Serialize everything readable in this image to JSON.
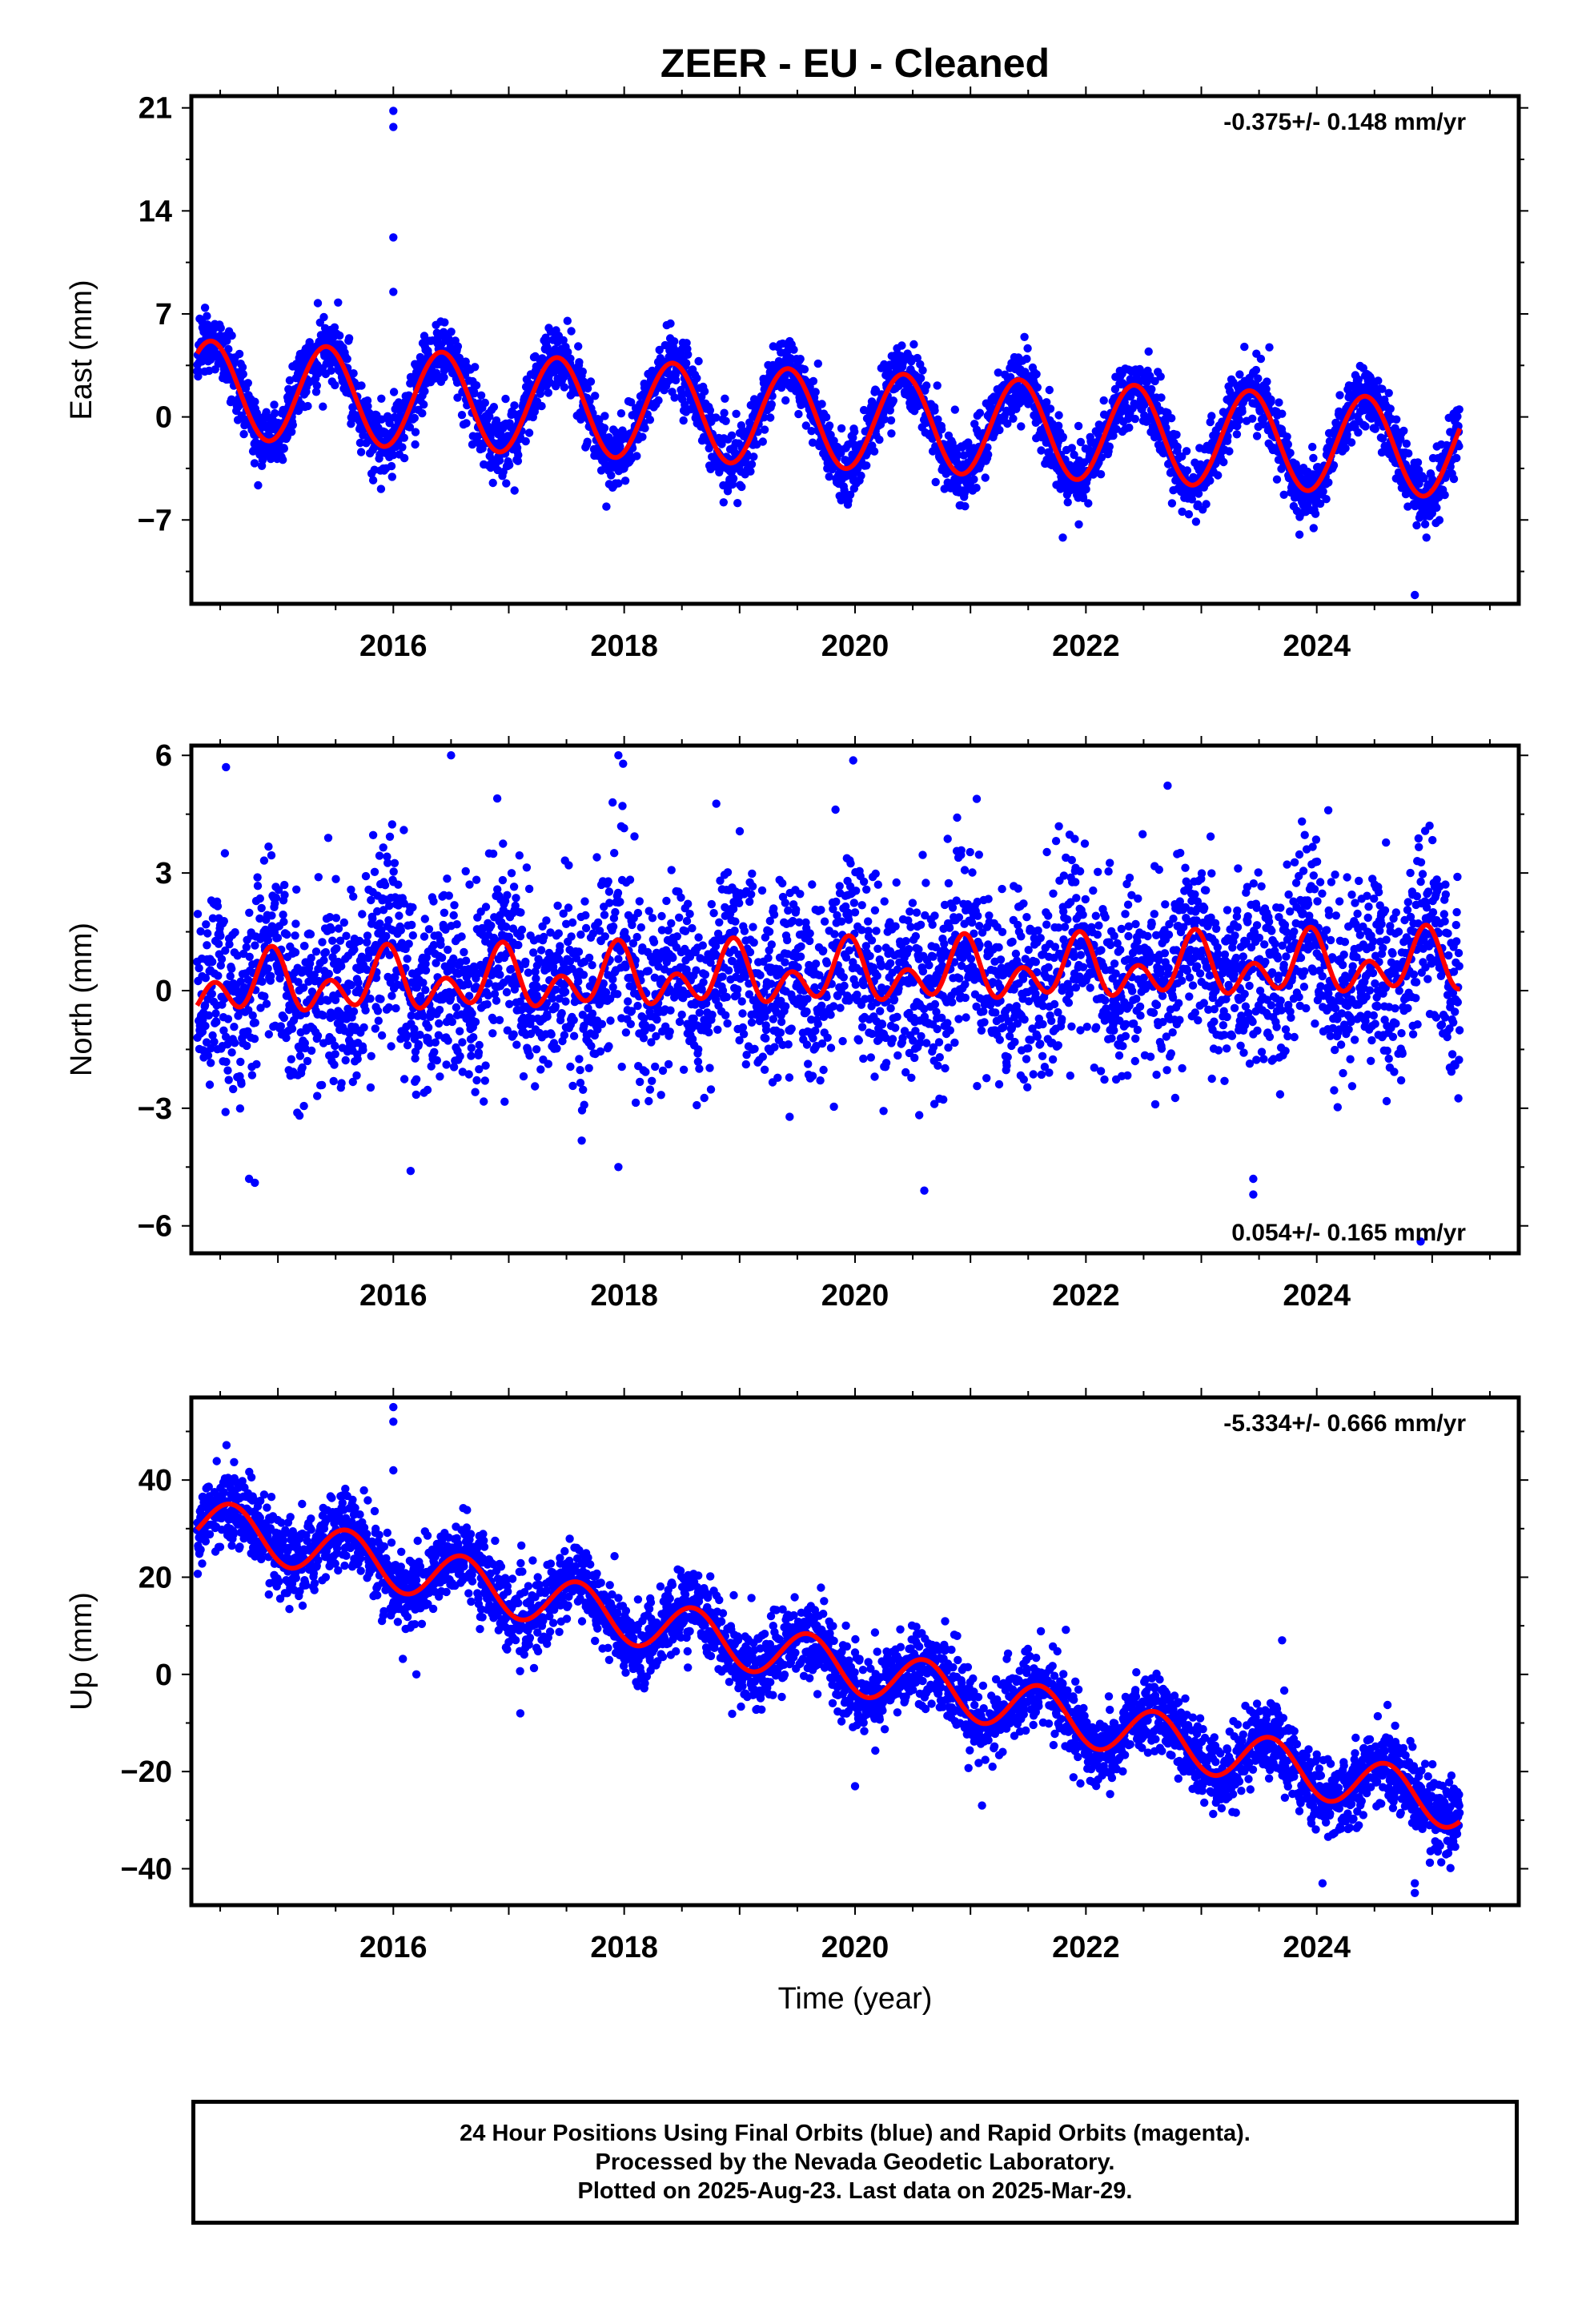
{
  "title": "ZEER  - EU - Cleaned",
  "xlabel": "Time (year)",
  "colors": {
    "points": "#0000ff",
    "fit": "#ff0000",
    "frame": "#000000"
  },
  "caption": [
    "24 Hour Positions Using Final Orbits (blue) and Rapid Orbits (magenta).",
    "Processed by the Nevada Geodetic Laboratory.",
    "Plotted on 2025-Aug-23. Last data on 2025-Mar-29."
  ],
  "chart_data": [
    {
      "type": "scatter",
      "component": "east",
      "ylabel": "East (mm)",
      "rate_label": "-0.375+/- 0.148 mm/yr",
      "rate_position": "top-right",
      "xlim": [
        2014.25,
        2025.75
      ],
      "ylim": [
        -12.7,
        21.8
      ],
      "xticks": [
        2016,
        2018,
        2020,
        2022,
        2024
      ],
      "yticks": [
        -7,
        0,
        7,
        14,
        21
      ],
      "trend": {
        "t0": 2014.3,
        "intercept_mm": 1.9,
        "rate_mm_yr": -0.375
      },
      "annual": {
        "amplitude_mm": 3.3,
        "peak_year_fraction": 0.42
      },
      "semiannual": {
        "amplitude_mm": 0.0,
        "peak_year_fraction": 0.0
      },
      "scatter_sd_mm": 1.1,
      "outliers": [
        [
          2016.0,
          20.8
        ],
        [
          2016.0,
          19.7
        ],
        [
          2016.0,
          12.2
        ],
        [
          2016.0,
          8.5
        ],
        [
          2024.85,
          -12.1
        ],
        [
          2024.95,
          -8.2
        ],
        [
          2021.8,
          -8.2
        ],
        [
          2023.85,
          -8.0
        ],
        [
          2017.05,
          -5.0
        ],
        [
          2017.9,
          -4.8
        ]
      ],
      "fit_samples": [
        {
          "x": 2014.3,
          "y": 4.0
        },
        {
          "x": 2014.5,
          "y": 5.3
        },
        {
          "x": 2015.0,
          "y": -1.2
        },
        {
          "x": 2015.4,
          "y": 4.8
        },
        {
          "x": 2016.0,
          "y": -1.6
        },
        {
          "x": 2016.4,
          "y": 4.5
        },
        {
          "x": 2017.0,
          "y": -2.0
        },
        {
          "x": 2017.4,
          "y": 4.1
        },
        {
          "x": 2018.0,
          "y": -2.3
        },
        {
          "x": 2018.4,
          "y": 3.7
        },
        {
          "x": 2019.0,
          "y": -2.6
        },
        {
          "x": 2019.4,
          "y": 3.4
        },
        {
          "x": 2020.0,
          "y": -3.0
        },
        {
          "x": 2020.4,
          "y": 3.0
        },
        {
          "x": 2021.0,
          "y": -3.4
        },
        {
          "x": 2021.4,
          "y": 2.6
        },
        {
          "x": 2022.0,
          "y": -3.8
        },
        {
          "x": 2022.4,
          "y": 2.3
        },
        {
          "x": 2023.0,
          "y": -4.1
        },
        {
          "x": 2023.4,
          "y": 1.9
        },
        {
          "x": 2024.0,
          "y": -4.5
        },
        {
          "x": 2024.4,
          "y": 1.6
        },
        {
          "x": 2024.9,
          "y": -5.0
        },
        {
          "x": 2025.25,
          "y": -0.4
        }
      ]
    },
    {
      "type": "scatter",
      "component": "north",
      "ylabel": "North (mm)",
      "rate_label": "0.054+/- 0.165 mm/yr",
      "rate_position": "bottom-right",
      "xlim": [
        2014.25,
        2025.75
      ],
      "ylim": [
        -6.7,
        6.25
      ],
      "xticks": [
        2016,
        2018,
        2020,
        2022,
        2024
      ],
      "yticks": [
        -6,
        -3,
        0,
        3,
        6
      ],
      "trend": {
        "t0": 2014.3,
        "intercept_mm": 0.1,
        "rate_mm_yr": 0.054
      },
      "annual": {
        "amplitude_mm": 0.45,
        "peak_year_fraction": 0.93
      },
      "semiannual": {
        "amplitude_mm": 0.55,
        "peak_year_fraction": 0.45
      },
      "scatter_sd_mm": 1.2,
      "outliers": [
        [
          2014.55,
          5.7
        ],
        [
          2016.5,
          6.0
        ],
        [
          2017.95,
          6.0
        ],
        [
          2016.9,
          4.9
        ],
        [
          2017.9,
          4.8
        ],
        [
          2014.75,
          -4.8
        ],
        [
          2014.8,
          -4.9
        ],
        [
          2016.15,
          -4.6
        ],
        [
          2017.95,
          -4.5
        ],
        [
          2023.45,
          -5.2
        ],
        [
          2020.6,
          -5.1
        ],
        [
          2024.9,
          -6.4
        ],
        [
          2023.45,
          -4.8
        ],
        [
          2024.1,
          4.6
        ]
      ],
      "fit_samples": [
        {
          "x": 2014.3,
          "y": -0.9
        },
        {
          "x": 2014.5,
          "y": -0.3
        },
        {
          "x": 2014.7,
          "y": -1.0
        },
        {
          "x": 2014.95,
          "y": 0.9
        },
        {
          "x": 2015.2,
          "y": -1.0
        },
        {
          "x": 2015.45,
          "y": -0.3
        },
        {
          "x": 2015.7,
          "y": -1.0
        },
        {
          "x": 2015.95,
          "y": 1.0
        },
        {
          "x": 2016.2,
          "y": -0.9
        },
        {
          "x": 2016.95,
          "y": 1.0
        },
        {
          "x": 2017.95,
          "y": 1.1
        },
        {
          "x": 2018.95,
          "y": 1.1
        },
        {
          "x": 2019.95,
          "y": 1.2
        },
        {
          "x": 2020.95,
          "y": 1.2
        },
        {
          "x": 2021.95,
          "y": 1.3
        },
        {
          "x": 2022.95,
          "y": 1.3
        },
        {
          "x": 2023.95,
          "y": 1.4
        },
        {
          "x": 2024.95,
          "y": 1.4
        },
        {
          "x": 2025.25,
          "y": -0.3
        }
      ]
    },
    {
      "type": "scatter",
      "component": "up",
      "ylabel": "Up (mm)",
      "rate_label": "-5.334+/- 0.666 mm/yr",
      "rate_position": "top-right",
      "xlim": [
        2014.25,
        2025.75
      ],
      "ylim": [
        -47.5,
        57
      ],
      "xticks": [
        2016,
        2018,
        2020,
        2022,
        2024
      ],
      "yticks": [
        -40,
        -20,
        0,
        20,
        40
      ],
      "trend": {
        "t0": 2014.3,
        "intercept_mm": 31.4,
        "rate_mm_yr": -5.334
      },
      "annual": {
        "amplitude_mm": 5.2,
        "peak_year_fraction": 0.6
      },
      "semiannual": {
        "amplitude_mm": 0.0,
        "peak_year_fraction": 0.0
      },
      "scatter_sd_mm": 4.0,
      "outliers": [
        [
          2016.0,
          55.0
        ],
        [
          2016.0,
          52.0
        ],
        [
          2016.0,
          42.0
        ],
        [
          2016.2,
          0.0
        ],
        [
          2024.85,
          -45.0
        ],
        [
          2024.85,
          -43.0
        ],
        [
          2024.05,
          -43.0
        ],
        [
          2023.7,
          7.0
        ],
        [
          2017.1,
          -8.0
        ],
        [
          2020.0,
          -23.0
        ],
        [
          2021.1,
          -27.0
        ]
      ],
      "fit_samples": [
        {
          "x": 2014.3,
          "y": 26.5
        },
        {
          "x": 2014.6,
          "y": 35.5
        },
        {
          "x": 2015.2,
          "y": 21.5
        },
        {
          "x": 2015.6,
          "y": 30.2
        },
        {
          "x": 2016.2,
          "y": 16.0
        },
        {
          "x": 2016.6,
          "y": 24.9
        },
        {
          "x": 2017.2,
          "y": 10.5
        },
        {
          "x": 2017.6,
          "y": 19.5
        },
        {
          "x": 2018.2,
          "y": 5.0
        },
        {
          "x": 2018.6,
          "y": 14.2
        },
        {
          "x": 2019.2,
          "y": -0.5
        },
        {
          "x": 2019.6,
          "y": 8.9
        },
        {
          "x": 2020.2,
          "y": -6.0
        },
        {
          "x": 2020.6,
          "y": 3.5
        },
        {
          "x": 2021.2,
          "y": -11.3
        },
        {
          "x": 2021.6,
          "y": -1.8
        },
        {
          "x": 2022.2,
          "y": -16.6
        },
        {
          "x": 2022.6,
          "y": -7.2
        },
        {
          "x": 2023.2,
          "y": -22.0
        },
        {
          "x": 2023.6,
          "y": -12.5
        },
        {
          "x": 2024.2,
          "y": -27.3
        },
        {
          "x": 2024.6,
          "y": -17.9
        },
        {
          "x": 2025.25,
          "y": -33.0
        }
      ]
    }
  ]
}
